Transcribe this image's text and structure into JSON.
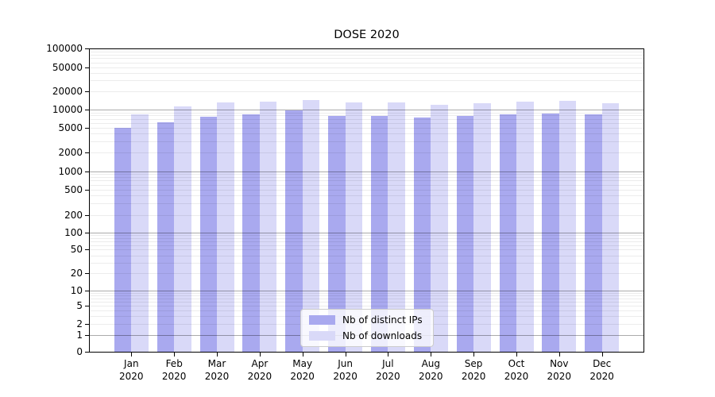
{
  "title": "DOSE 2020",
  "colors": {
    "distinct_ips": "#a9a9ef",
    "downloads": "#d9d9f8",
    "axis": "#000000",
    "legend_border": "#cccccc"
  },
  "legend": {
    "items": [
      {
        "key": "distinct_ips",
        "label": "Nb of distinct IPs"
      },
      {
        "key": "downloads",
        "label": "Nb of downloads"
      }
    ]
  },
  "x_axis": {
    "months": [
      "Jan",
      "Feb",
      "Mar",
      "Apr",
      "May",
      "Jun",
      "Jul",
      "Aug",
      "Sep",
      "Oct",
      "Nov",
      "Dec"
    ],
    "year": "2020"
  },
  "y_axis": {
    "tick_values": [
      100000,
      50000,
      20000,
      10000,
      5000,
      2000,
      1000,
      500,
      200,
      100,
      50,
      20,
      10,
      5,
      2,
      1,
      0
    ]
  },
  "chart_data": {
    "type": "bar",
    "title": "DOSE 2020",
    "categories": [
      "Jan 2020",
      "Feb 2020",
      "Mar 2020",
      "Apr 2020",
      "May 2020",
      "Jun 2020",
      "Jul 2020",
      "Aug 2020",
      "Sep 2020",
      "Oct 2020",
      "Nov 2020",
      "Dec 2020"
    ],
    "series": [
      {
        "name": "Nb of distinct IPs",
        "key": "distinct_ips",
        "values": [
          5040,
          6160,
          7720,
          8290,
          9620,
          7950,
          7880,
          7360,
          7900,
          8370,
          8540,
          8370
        ]
      },
      {
        "name": "Nb of downloads",
        "key": "downloads",
        "values": [
          8290,
          11270,
          13070,
          13350,
          14450,
          12960,
          13190,
          11850,
          12580,
          13590,
          13750,
          12690
        ]
      }
    ],
    "xlabel": "",
    "ylabel": "",
    "yscale": "symlog",
    "ylim": [
      0,
      100000
    ],
    "y_ticks": [
      0,
      1,
      2,
      5,
      10,
      20,
      50,
      100,
      200,
      500,
      1000,
      2000,
      5000,
      10000,
      20000,
      50000,
      100000
    ],
    "grid": "horizontal major+minor log gridlines",
    "legend_position": "inside lower-center"
  }
}
